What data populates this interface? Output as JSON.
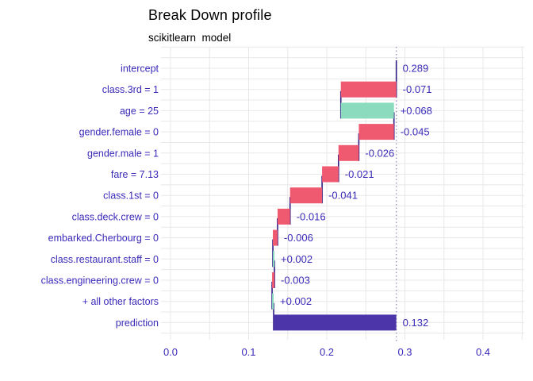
{
  "title": "Break Down profile",
  "subtitle": "scikitlearn  model",
  "chart_data": {
    "type": "bar",
    "subtype": "breakdown-waterfall",
    "orientation": "horizontal",
    "title": "Break Down profile",
    "subtitle": "scikitlearn  model",
    "baseline": 0.289,
    "prediction": 0.132,
    "xlabel": "",
    "ylabel": "",
    "xlim": [
      -0.012,
      0.453
    ],
    "xticks": [
      "0.0",
      "0.1",
      "0.2",
      "0.3",
      "0.4"
    ],
    "xtick_values": [
      0.0,
      0.1,
      0.2,
      0.3,
      0.4
    ],
    "x_gridline_step": 0.05,
    "x_gridline_max": 0.45,
    "grid": true,
    "legend": "none",
    "rows": [
      {
        "label": "intercept",
        "kind": "intercept",
        "contribution": 0.289,
        "display": "0.289"
      },
      {
        "label": "class.3rd = 1",
        "kind": "negative",
        "contribution": -0.071,
        "display": "-0.071"
      },
      {
        "label": "age = 25",
        "kind": "positive",
        "contribution": 0.068,
        "display": "+0.068"
      },
      {
        "label": "gender.female = 0",
        "kind": "negative",
        "contribution": -0.045,
        "display": "-0.045"
      },
      {
        "label": "gender.male = 1",
        "kind": "negative",
        "contribution": -0.026,
        "display": "-0.026"
      },
      {
        "label": "fare = 7.13",
        "kind": "negative",
        "contribution": -0.021,
        "display": "-0.021"
      },
      {
        "label": "class.1st = 0",
        "kind": "negative",
        "contribution": -0.041,
        "display": "-0.041"
      },
      {
        "label": "class.deck.crew = 0",
        "kind": "negative",
        "contribution": -0.016,
        "display": "-0.016"
      },
      {
        "label": "embarked.Cherbourg = 0",
        "kind": "negative",
        "contribution": -0.006,
        "display": "-0.006"
      },
      {
        "label": "class.restaurant.staff = 0",
        "kind": "positive",
        "contribution": 0.002,
        "display": "+0.002"
      },
      {
        "label": "class.engineering.crew = 0",
        "kind": "negative",
        "contribution": -0.003,
        "display": "-0.003"
      },
      {
        "label": "+ all other factors",
        "kind": "positive",
        "contribution": 0.002,
        "display": "+0.002"
      },
      {
        "label": "prediction",
        "kind": "prediction",
        "contribution": 0.132,
        "display": "0.132"
      }
    ],
    "colors": {
      "positive": "#8bdcbe",
      "negative": "#f05a71",
      "prediction": "#4b35a9",
      "connector": "#2f1d85",
      "text": "#3a2ab8",
      "grid": "#e8e8e8",
      "dotted_line": "#9b95bd",
      "background": "#ffffff"
    }
  }
}
